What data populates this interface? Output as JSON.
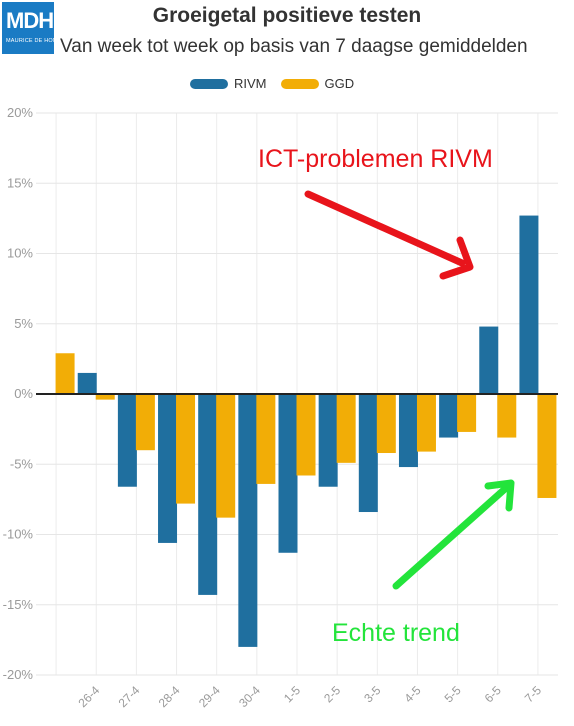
{
  "logo": {
    "text": "MDH",
    "subtext": "MAURICE DE HOND"
  },
  "chart_data": {
    "type": "bar",
    "title": "Groeigetal positieve testen",
    "subtitle": "Van week tot week op basis van 7 daagse gemiddelden",
    "categories": [
      "",
      "26-4",
      "27-4",
      "28-4",
      "29-4",
      "30-4",
      "1-5",
      "2-5",
      "3-5",
      "4-5",
      "5-5",
      "6-5",
      "7-5"
    ],
    "series": [
      {
        "name": "RIVM",
        "color": "#1f6f9f",
        "values": [
          null,
          1.5,
          -6.6,
          -10.6,
          -14.3,
          -18.0,
          -11.3,
          -6.6,
          -8.4,
          -5.2,
          -3.1,
          4.8,
          12.7
        ]
      },
      {
        "name": "GGD",
        "color": "#f2ad06",
        "values": [
          2.9,
          -0.4,
          -4.0,
          -7.8,
          -8.8,
          -6.4,
          -5.8,
          -4.9,
          -4.2,
          -4.1,
          -2.7,
          -3.1,
          -7.4
        ]
      }
    ],
    "ylim": [
      -20,
      20
    ],
    "yticks": [
      20,
      15,
      10,
      5,
      0,
      -5,
      -10,
      -15,
      -20
    ],
    "ytick_labels": [
      "20%",
      "15%",
      "10%",
      "5%",
      "0%",
      "-5%",
      "-10%",
      "-15%",
      "-20%"
    ],
    "grid": true,
    "legend_position": "top-center",
    "annotations": [
      {
        "text": "ICT-problemen RIVM",
        "color": "#e8141b"
      },
      {
        "text": "Echte trend",
        "color": "#23e43b"
      }
    ]
  }
}
